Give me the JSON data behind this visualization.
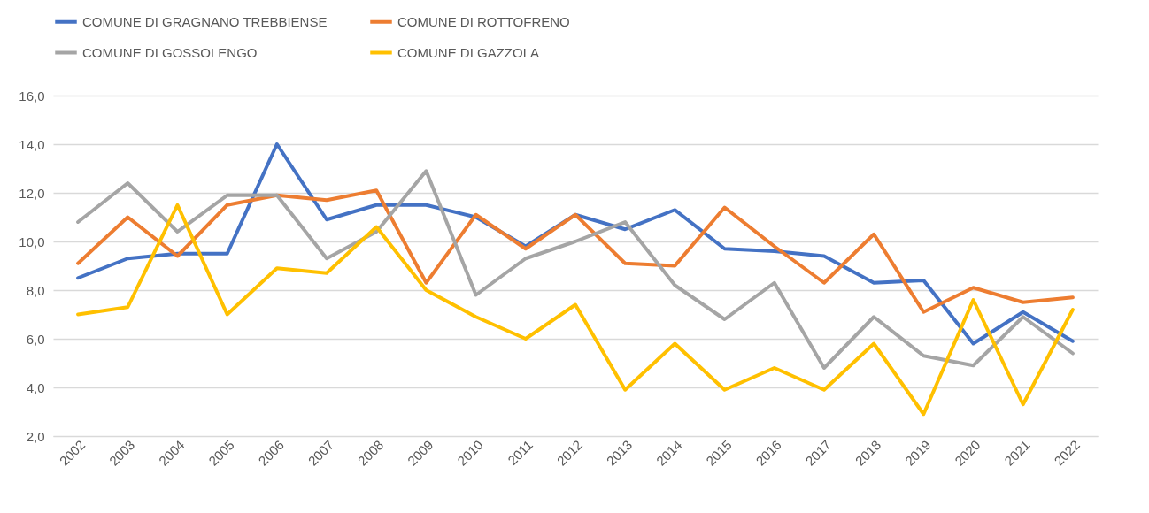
{
  "chart_data": {
    "type": "line",
    "categories": [
      "2002",
      "2003",
      "2004",
      "2005",
      "2006",
      "2007",
      "2008",
      "2009",
      "2010",
      "2011",
      "2012",
      "2013",
      "2014",
      "2015",
      "2016",
      "2017",
      "2018",
      "2019",
      "2020",
      "2021",
      "2022"
    ],
    "series": [
      {
        "name": "COMUNE DI GRAGNANO TREBBIENSE",
        "color": "#4472c4",
        "values": [
          8.5,
          9.3,
          9.5,
          9.5,
          14.0,
          10.9,
          11.5,
          11.5,
          11.0,
          9.8,
          11.1,
          10.5,
          11.3,
          9.7,
          9.6,
          9.4,
          8.3,
          8.4,
          5.8,
          7.1,
          5.9
        ]
      },
      {
        "name": "COMUNE DI ROTTOFRENO",
        "color": "#ed7d31",
        "values": [
          9.1,
          11.0,
          9.4,
          11.5,
          11.9,
          11.7,
          12.1,
          8.3,
          11.1,
          9.7,
          11.1,
          9.1,
          9.0,
          11.4,
          9.8,
          8.3,
          10.3,
          7.1,
          8.1,
          7.5,
          7.7
        ]
      },
      {
        "name": "COMUNE DI GOSSOLENGO",
        "color": "#a5a5a5",
        "values": [
          10.8,
          12.4,
          10.4,
          11.9,
          11.9,
          9.3,
          10.4,
          12.9,
          7.8,
          9.3,
          10.0,
          10.8,
          8.2,
          6.8,
          8.3,
          4.8,
          6.9,
          5.3,
          4.9,
          6.9,
          5.4
        ]
      },
      {
        "name": "COMUNE DI GAZZOLA",
        "color": "#ffc000",
        "values": [
          7.0,
          7.3,
          11.5,
          7.0,
          8.9,
          8.7,
          10.6,
          8.0,
          6.9,
          6.0,
          7.4,
          3.9,
          5.8,
          3.9,
          4.8,
          3.9,
          5.8,
          2.9,
          7.6,
          3.3,
          7.2
        ]
      }
    ],
    "ylim": [
      2,
      16
    ],
    "yticks": [
      {
        "value": 2,
        "label": "2,0"
      },
      {
        "value": 4,
        "label": "4,0"
      },
      {
        "value": 6,
        "label": "6,0"
      },
      {
        "value": 8,
        "label": "8,0"
      },
      {
        "value": 10,
        "label": "10,0"
      },
      {
        "value": 12,
        "label": "12,0"
      },
      {
        "value": 14,
        "label": "14,0"
      },
      {
        "value": 16,
        "label": "16,0"
      }
    ],
    "grid": "y",
    "legend": "top",
    "marker": "none",
    "line_style": "solid"
  }
}
